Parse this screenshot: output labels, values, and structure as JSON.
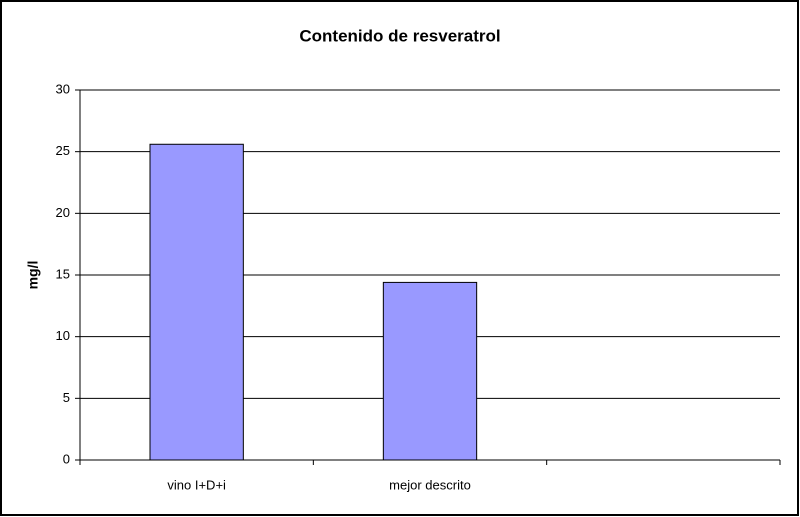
{
  "chart_data": {
    "type": "bar",
    "title": "Contenido de resveratrol",
    "y_label": "mg/l",
    "categories": [
      "vino I+D+i",
      "mejor descrito",
      null
    ],
    "values": [
      25.6,
      14.4,
      null
    ],
    "color": "#9999ff",
    "ylim": [
      0,
      30
    ],
    "yticks": [
      0,
      5,
      10,
      15,
      20,
      25,
      30
    ],
    "grid": true
  }
}
